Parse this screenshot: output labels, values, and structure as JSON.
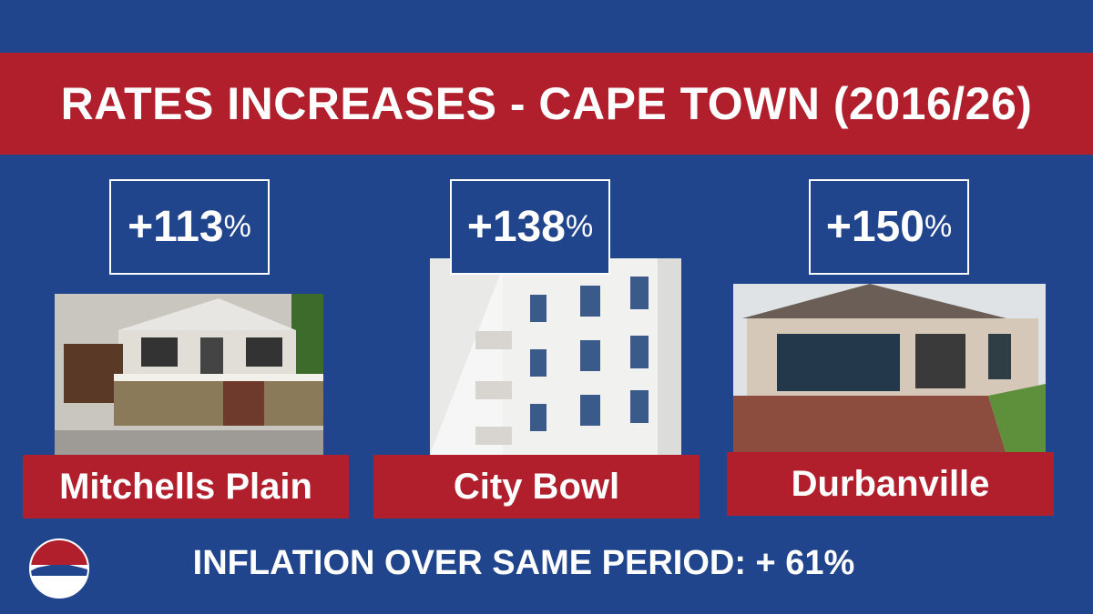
{
  "header": {
    "title": "RATES INCREASES - CAPE TOWN (2016/26)"
  },
  "cards": [
    {
      "change": "+113",
      "unit": "%",
      "place": "Mitchells Plain"
    },
    {
      "change": "+138",
      "unit": "%",
      "place": "City Bowl"
    },
    {
      "change": "+150",
      "unit": "%",
      "place": "Durbanville"
    }
  ],
  "footer": {
    "text": "INFLATION OVER SAME PERIOD: + 61%"
  }
}
